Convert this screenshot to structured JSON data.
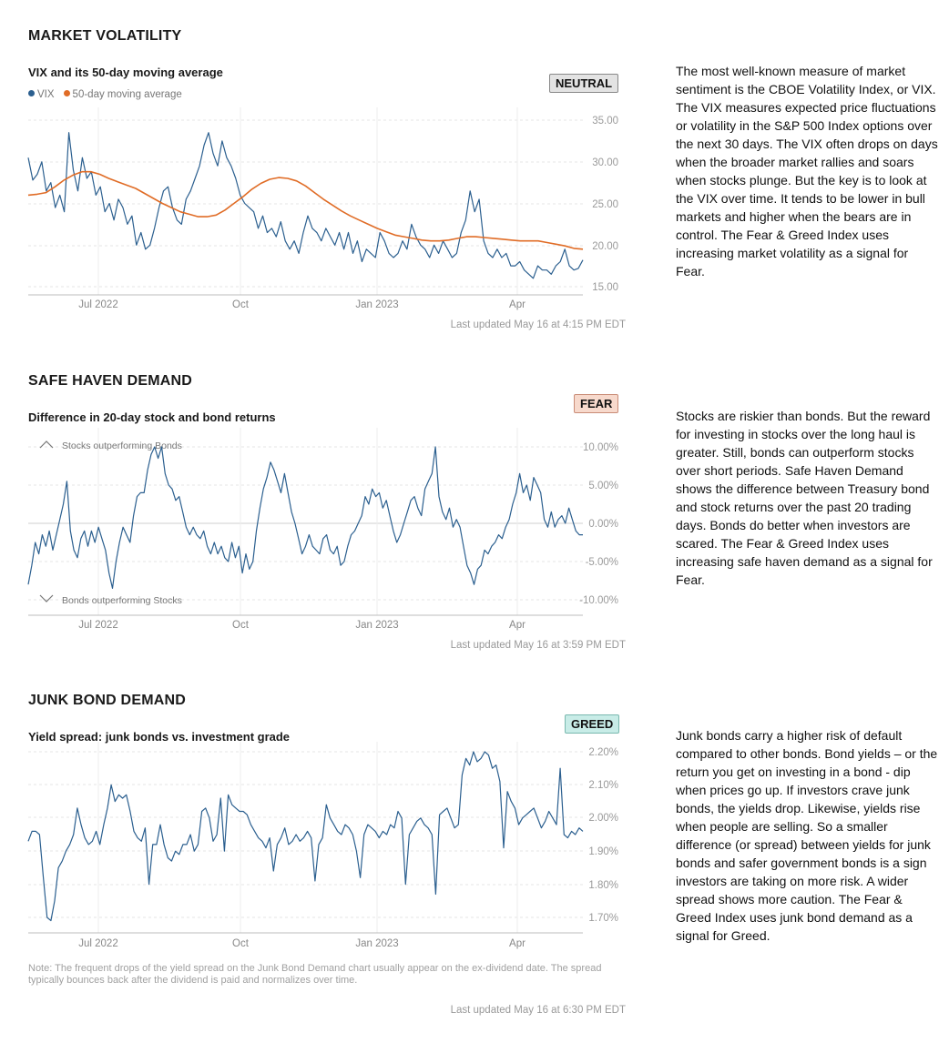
{
  "sections": [
    {
      "title": "MARKET VOLATILITY",
      "chart_title": "VIX and its 50-day moving average",
      "badge": "NEUTRAL",
      "badge_bg": "#e3e3e3",
      "legend": [
        {
          "label": "VIX",
          "color": "#2b5f8f"
        },
        {
          "label": "50-day moving average",
          "color": "#e06c26"
        }
      ],
      "updated": "Last updated May 16 at 4:15 PM EDT",
      "description": "The most well-known measure of market sentiment is the CBOE Volatility Index, or VIX. The VIX measures expected price fluctuations or volatility in the S&P 500 Index options over the next 30 days. The VIX often drops on days when the broader market rallies and soars when stocks plunge. But the key is to look at the VIX over time. It tends to be lower in bull markets and higher when the bears are in control. The Fear & Greed Index uses increasing market volatility as a signal for Fear."
    },
    {
      "title": "SAFE HAVEN DEMAND",
      "chart_title": "Difference in 20-day stock and bond returns",
      "badge": "FEAR",
      "badge_bg": "#f7d9cc",
      "annotations": {
        "top": "Stocks outperforming Bonds",
        "bottom": "Bonds outperforming Stocks"
      },
      "updated": "Last updated May 16 at 3:59 PM EDT",
      "description": "Stocks are riskier than bonds. But the reward for investing in stocks over the long haul is greater. Still, bonds can outperform stocks over short periods. Safe Haven Demand shows the difference between Treasury bond and stock returns over the past 20 trading days. Bonds do better when investors are scared. The Fear & Greed Index uses increasing safe haven demand as a signal for Fear."
    },
    {
      "title": "JUNK BOND DEMAND",
      "chart_title": "Yield spread: junk bonds vs. investment grade",
      "badge": "GREED",
      "badge_bg": "#c8ece7",
      "note": "Note: The frequent drops of the yield spread on the Junk Bond Demand chart usually appear on the ex-dividend date. The spread typically bounces back after the dividend is paid and normalizes over time.",
      "updated": "Last updated May 16 at 6:30 PM EDT",
      "description": "Junk bonds carry a higher risk of default compared to other bonds. Bond yields – or the return you get on investing in a bond - dip when prices go up. If investors crave junk bonds, the yields drop. Likewise, yields rise when people are selling. So a smaller difference (or spread) between yields for junk bonds and safer government bonds is a sign investors are taking on more risk. A wider spread shows more caution. The Fear & Greed Index uses junk bond demand as a signal for Greed."
    }
  ],
  "chart_data": [
    {
      "type": "line",
      "title": "VIX and its 50-day moving average",
      "x_ticks": [
        "Jul 2022",
        "Oct",
        "Jan 2023",
        "Apr"
      ],
      "y_ticks": [
        "35.00",
        "30.00",
        "25.00",
        "20.00",
        "15.00"
      ],
      "ylim": [
        15,
        35
      ],
      "series": [
        {
          "name": "VIX",
          "color": "#2b5f8f",
          "values": [
            30.5,
            27.8,
            28.5,
            30,
            26.5,
            27.5,
            24.5,
            26,
            24,
            33.5,
            29,
            26.5,
            30.5,
            28,
            28.8,
            26,
            27,
            24,
            25,
            23,
            25.5,
            24.5,
            22.5,
            23.5,
            20,
            21.5,
            19.5,
            20,
            22,
            24.5,
            26.5,
            27,
            24.5,
            23,
            22.5,
            25.5,
            26.5,
            28,
            29.5,
            32,
            33.5,
            31,
            29.5,
            32.5,
            30.5,
            29.5,
            28,
            26,
            25,
            24.5,
            24,
            22,
            23.5,
            21.5,
            22,
            21,
            22.8,
            20.5,
            19.5,
            20.5,
            19,
            21.5,
            23.5,
            22,
            21.5,
            20.5,
            22,
            21,
            20,
            21.5,
            19.5,
            21.5,
            19,
            20.5,
            18,
            19.5,
            19,
            18.5,
            21.5,
            20.5,
            19,
            18.5,
            19,
            20.5,
            19.5,
            22.5,
            21,
            20,
            19.5,
            18.5,
            20,
            19,
            20.5,
            19.5,
            18.5,
            19,
            21.5,
            23,
            26.5,
            24,
            25.5,
            20.5,
            19,
            18.5,
            19.5,
            18.5,
            19,
            17.5,
            17.5,
            18,
            17,
            16.5,
            16,
            17.5,
            17,
            17,
            16.5,
            17.5,
            18,
            19.5,
            17.5,
            17,
            17.2,
            18.2
          ]
        },
        {
          "name": "50-day moving average",
          "color": "#e06c26",
          "values": [
            26,
            26.1,
            26.3,
            27,
            27.8,
            28.4,
            28.8,
            28.8,
            28.5,
            28,
            27.6,
            27.2,
            26.8,
            26.2,
            25.6,
            25,
            24.5,
            24,
            23.7,
            23.4,
            23.4,
            23.6,
            24.2,
            25,
            25.8,
            26.7,
            27.4,
            27.9,
            28.1,
            28,
            27.7,
            27.1,
            26.3,
            25.5,
            24.8,
            24.1,
            23.5,
            23,
            22.5,
            22,
            21.6,
            21.2,
            21,
            20.8,
            20.6,
            20.5,
            20.5,
            20.6,
            20.8,
            21,
            21,
            20.9,
            20.8,
            20.7,
            20.6,
            20.5,
            20.5,
            20.5,
            20.3,
            20.1,
            19.9,
            19.6,
            19.5
          ]
        }
      ]
    },
    {
      "type": "line",
      "title": "Difference in 20-day stock and bond returns",
      "x_ticks": [
        "Jul 2022",
        "Oct",
        "Jan 2023",
        "Apr"
      ],
      "y_ticks": [
        "10.00%",
        "5.00%",
        "0.00%",
        "-5.00%",
        "-10.00%"
      ],
      "ylim": [
        -10.5,
        10.5
      ],
      "series": [
        {
          "name": "",
          "color": "#2b5f8f",
          "values": [
            -8,
            -5.5,
            -2.5,
            -4,
            -1.5,
            -3,
            -1,
            -3.5,
            -1.5,
            0.5,
            2.5,
            5.5,
            -1,
            -3.5,
            -4.5,
            -2,
            -1,
            -3,
            -1,
            -2.5,
            -0.5,
            -2,
            -3.5,
            -6.5,
            -8.5,
            -5,
            -2.5,
            -0.5,
            -1.5,
            -2.5,
            1,
            3.5,
            4,
            4,
            7,
            9,
            10,
            8.5,
            10,
            6.5,
            5,
            4.5,
            3,
            3.5,
            1.5,
            -0.5,
            -1.5,
            -0.5,
            -1.5,
            -2,
            -1,
            -3,
            -4,
            -2.5,
            -4,
            -3,
            -4.5,
            -5,
            -2.5,
            -4.5,
            -3,
            -6.5,
            -4,
            -6,
            -5,
            -1,
            2,
            4.5,
            6,
            8,
            7,
            5.5,
            4,
            6.5,
            4,
            1.5,
            0,
            -2,
            -4,
            -3,
            -1.5,
            -3,
            -3.5,
            -4,
            -2,
            -1.5,
            -3.5,
            -4,
            -3,
            -5.5,
            -5,
            -3,
            -1.5,
            -1,
            0,
            1,
            3.5,
            2.5,
            4.5,
            3.5,
            4,
            2,
            3,
            1,
            -1,
            -2.5,
            -1.5,
            0,
            1.5,
            3,
            3.5,
            2,
            1,
            4.5,
            5.5,
            6.5,
            10,
            3.5,
            1.5,
            0.5,
            2,
            -0.5,
            0.5,
            -0.5,
            -3,
            -5.5,
            -6.5,
            -8,
            -6,
            -5.5,
            -3.5,
            -4,
            -3,
            -2.5,
            -1.5,
            -2,
            -0.5,
            0.5,
            2.5,
            4,
            6.5,
            4,
            5,
            3,
            6,
            5,
            4,
            0.5,
            -0.5,
            1.5,
            -0.5,
            0.5,
            1,
            0,
            2,
            0.5,
            -1,
            -1.5,
            -1.5
          ]
        }
      ]
    },
    {
      "type": "line",
      "title": "Yield spread: junk bonds vs. investment grade",
      "x_ticks": [
        "Jul 2022",
        "Oct",
        "Jan 2023",
        "Apr"
      ],
      "y_ticks": [
        "2.20%",
        "2.10%",
        "2.00%",
        "1.90%",
        "1.80%",
        "1.70%"
      ],
      "ylim": [
        1.67,
        2.22
      ],
      "series": [
        {
          "name": "",
          "color": "#2b5f8f",
          "values": [
            1.93,
            1.96,
            1.96,
            1.95,
            1.82,
            1.7,
            1.69,
            1.75,
            1.85,
            1.87,
            1.9,
            1.92,
            1.95,
            2.03,
            1.98,
            1.94,
            1.92,
            1.93,
            1.96,
            1.92,
            1.98,
            2.03,
            2.1,
            2.05,
            2.07,
            2.06,
            2.07,
            2.02,
            1.96,
            1.94,
            1.93,
            1.97,
            1.8,
            1.92,
            1.92,
            1.98,
            1.92,
            1.88,
            1.87,
            1.9,
            1.89,
            1.92,
            1.92,
            1.95,
            1.9,
            1.92,
            2.02,
            2.03,
            2.0,
            1.93,
            1.95,
            2.06,
            1.9,
            2.07,
            2.04,
            2.03,
            2.02,
            2.02,
            2.01,
            1.98,
            1.96,
            1.94,
            1.93,
            1.91,
            1.94,
            1.84,
            1.92,
            1.94,
            1.97,
            1.92,
            1.93,
            1.95,
            1.93,
            1.94,
            1.96,
            1.94,
            1.81,
            1.92,
            1.94,
            2.04,
            2.0,
            1.98,
            1.96,
            1.95,
            1.98,
            1.97,
            1.95,
            1.9,
            1.82,
            1.95,
            1.98,
            1.97,
            1.96,
            1.94,
            1.96,
            1.95,
            1.98,
            1.97,
            2.02,
            2.0,
            1.8,
            1.95,
            1.97,
            1.99,
            2.0,
            1.98,
            1.97,
            1.95,
            1.77,
            2.01,
            2.02,
            2.03,
            2.0,
            1.97,
            1.98,
            2.13,
            2.18,
            2.16,
            2.2,
            2.17,
            2.18,
            2.2,
            2.19,
            2.15,
            2.16,
            2.11,
            1.91,
            2.08,
            2.05,
            2.03,
            1.98,
            2.0,
            2.01,
            2.02,
            2.03,
            2.0,
            1.97,
            1.99,
            2.02,
            2.0,
            1.98,
            2.15,
            1.95,
            1.94,
            1.96,
            1.95,
            1.97,
            1.96
          ]
        }
      ]
    }
  ]
}
